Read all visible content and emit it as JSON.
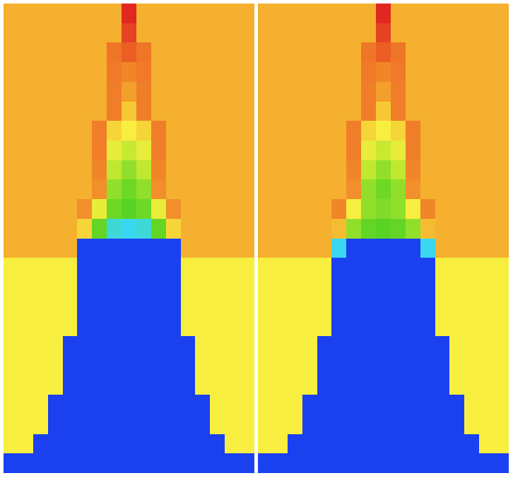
{
  "chart_data": [
    {
      "type": "heatmap",
      "tick_labels": false,
      "zlim": [
        0,
        1
      ],
      "cells": [
        [
          0.72,
          0.72,
          0.72,
          0.72,
          0.72,
          0.72,
          0.72,
          0.72,
          1,
          0.72,
          0.72,
          0.72,
          0.72,
          0.72,
          0.72,
          0.72,
          0.72
        ],
        [
          0.72,
          0.72,
          0.72,
          0.72,
          0.72,
          0.72,
          0.72,
          0.72,
          0.95,
          0.72,
          0.72,
          0.72,
          0.72,
          0.72,
          0.72,
          0.72,
          0.72
        ],
        [
          0.72,
          0.72,
          0.72,
          0.72,
          0.72,
          0.72,
          0.72,
          0.86,
          0.9,
          0.86,
          0.72,
          0.72,
          0.72,
          0.72,
          0.72,
          0.72,
          0.72
        ],
        [
          0.72,
          0.72,
          0.72,
          0.72,
          0.72,
          0.72,
          0.72,
          0.85,
          0.82,
          0.85,
          0.72,
          0.72,
          0.72,
          0.72,
          0.72,
          0.72,
          0.72
        ],
        [
          0.72,
          0.72,
          0.72,
          0.72,
          0.72,
          0.72,
          0.72,
          0.84,
          0.76,
          0.84,
          0.72,
          0.72,
          0.72,
          0.72,
          0.72,
          0.72,
          0.72
        ],
        [
          0.72,
          0.72,
          0.72,
          0.72,
          0.72,
          0.72,
          0.72,
          0.84,
          0.68,
          0.84,
          0.72,
          0.72,
          0.72,
          0.72,
          0.72,
          0.72,
          0.72
        ],
        [
          0.72,
          0.72,
          0.72,
          0.72,
          0.72,
          0.72,
          0.84,
          0.66,
          0.62,
          0.66,
          0.84,
          0.72,
          0.72,
          0.72,
          0.72,
          0.72,
          0.72
        ],
        [
          0.72,
          0.72,
          0.72,
          0.72,
          0.72,
          0.72,
          0.84,
          0.6,
          0.56,
          0.6,
          0.84,
          0.72,
          0.72,
          0.72,
          0.72,
          0.72,
          0.72
        ],
        [
          0.72,
          0.72,
          0.72,
          0.72,
          0.72,
          0.72,
          0.82,
          0.55,
          0.5,
          0.55,
          0.82,
          0.72,
          0.72,
          0.72,
          0.72,
          0.72,
          0.72
        ],
        [
          0.72,
          0.72,
          0.72,
          0.72,
          0.72,
          0.72,
          0.8,
          0.5,
          0.46,
          0.5,
          0.8,
          0.72,
          0.72,
          0.72,
          0.72,
          0.72,
          0.72
        ],
        [
          0.72,
          0.72,
          0.72,
          0.72,
          0.72,
          0.8,
          0.6,
          0.46,
          0.44,
          0.46,
          0.6,
          0.8,
          0.72,
          0.72,
          0.72,
          0.72,
          0.72
        ],
        [
          0.72,
          0.72,
          0.72,
          0.72,
          0.72,
          0.66,
          0.45,
          0.3,
          0.28,
          0.3,
          0.45,
          0.66,
          0.72,
          0.72,
          0.72,
          0.72,
          0.72
        ],
        [
          0.72,
          0.72,
          0.72,
          0.72,
          0.72,
          0,
          0,
          0,
          0,
          0,
          0,
          0,
          0.72,
          0.72,
          0.72,
          0.72,
          0.72
        ],
        [
          0.62,
          0.62,
          0.62,
          0.62,
          0.62,
          0,
          0,
          0,
          0,
          0,
          0,
          0,
          0.62,
          0.62,
          0.62,
          0.62,
          0.62
        ],
        [
          0.62,
          0.62,
          0.62,
          0.62,
          0.62,
          0,
          0,
          0,
          0,
          0,
          0,
          0,
          0.62,
          0.62,
          0.62,
          0.62,
          0.62
        ],
        [
          0.62,
          0.62,
          0.62,
          0.62,
          0.62,
          0,
          0,
          0,
          0,
          0,
          0,
          0,
          0.62,
          0.62,
          0.62,
          0.62,
          0.62
        ],
        [
          0.62,
          0.62,
          0.62,
          0.62,
          0.62,
          0,
          0,
          0,
          0,
          0,
          0,
          0,
          0.62,
          0.62,
          0.62,
          0.62,
          0.62
        ],
        [
          0.62,
          0.62,
          0.62,
          0.62,
          0,
          0,
          0,
          0,
          0,
          0,
          0,
          0,
          0,
          0.62,
          0.62,
          0.62,
          0.62
        ],
        [
          0.62,
          0.62,
          0.62,
          0.62,
          0,
          0,
          0,
          0,
          0,
          0,
          0,
          0,
          0,
          0.62,
          0.62,
          0.62,
          0.62
        ],
        [
          0.62,
          0.62,
          0.62,
          0.62,
          0,
          0,
          0,
          0,
          0,
          0,
          0,
          0,
          0,
          0.62,
          0.62,
          0.62,
          0.62
        ],
        [
          0.62,
          0.62,
          0.62,
          0,
          0,
          0,
          0,
          0,
          0,
          0,
          0,
          0,
          0,
          0,
          0.62,
          0.62,
          0.62
        ],
        [
          0.62,
          0.62,
          0.62,
          0,
          0,
          0,
          0,
          0,
          0,
          0,
          0,
          0,
          0,
          0,
          0.62,
          0.62,
          0.62
        ],
        [
          0.62,
          0.62,
          0,
          0,
          0,
          0,
          0,
          0,
          0,
          0,
          0,
          0,
          0,
          0,
          0,
          0.62,
          0.62
        ],
        [
          0,
          0,
          0,
          0,
          0,
          0,
          0,
          0,
          0,
          0,
          0,
          0,
          0,
          0,
          0,
          0,
          0
        ]
      ]
    },
    {
      "type": "heatmap",
      "tick_labels": false,
      "zlim": [
        0,
        1
      ],
      "cells": [
        [
          0.72,
          0.72,
          0.72,
          0.72,
          0.72,
          0.72,
          0.72,
          0.72,
          1,
          0.72,
          0.72,
          0.72,
          0.72,
          0.72,
          0.72,
          0.72,
          0.72
        ],
        [
          0.72,
          0.72,
          0.72,
          0.72,
          0.72,
          0.72,
          0.72,
          0.72,
          0.95,
          0.72,
          0.72,
          0.72,
          0.72,
          0.72,
          0.72,
          0.72,
          0.72
        ],
        [
          0.72,
          0.72,
          0.72,
          0.72,
          0.72,
          0.72,
          0.72,
          0.86,
          0.9,
          0.86,
          0.72,
          0.72,
          0.72,
          0.72,
          0.72,
          0.72,
          0.72
        ],
        [
          0.72,
          0.72,
          0.72,
          0.72,
          0.72,
          0.72,
          0.72,
          0.85,
          0.82,
          0.85,
          0.72,
          0.72,
          0.72,
          0.72,
          0.72,
          0.72,
          0.72
        ],
        [
          0.72,
          0.72,
          0.72,
          0.72,
          0.72,
          0.72,
          0.72,
          0.84,
          0.76,
          0.84,
          0.72,
          0.72,
          0.72,
          0.72,
          0.72,
          0.72,
          0.72
        ],
        [
          0.72,
          0.72,
          0.72,
          0.72,
          0.72,
          0.72,
          0.72,
          0.84,
          0.68,
          0.84,
          0.72,
          0.72,
          0.72,
          0.72,
          0.72,
          0.72,
          0.72
        ],
        [
          0.72,
          0.72,
          0.72,
          0.72,
          0.72,
          0.72,
          0.84,
          0.66,
          0.62,
          0.66,
          0.84,
          0.72,
          0.72,
          0.72,
          0.72,
          0.72,
          0.72
        ],
        [
          0.72,
          0.72,
          0.72,
          0.72,
          0.72,
          0.72,
          0.84,
          0.6,
          0.56,
          0.6,
          0.84,
          0.72,
          0.72,
          0.72,
          0.72,
          0.72,
          0.72
        ],
        [
          0.72,
          0.72,
          0.72,
          0.72,
          0.72,
          0.72,
          0.82,
          0.55,
          0.5,
          0.55,
          0.82,
          0.72,
          0.72,
          0.72,
          0.72,
          0.72,
          0.72
        ],
        [
          0.72,
          0.72,
          0.72,
          0.72,
          0.72,
          0.72,
          0.8,
          0.5,
          0.46,
          0.5,
          0.8,
          0.72,
          0.72,
          0.72,
          0.72,
          0.72,
          0.72
        ],
        [
          0.72,
          0.72,
          0.72,
          0.72,
          0.72,
          0.82,
          0.62,
          0.5,
          0.48,
          0.5,
          0.62,
          0.82,
          0.72,
          0.72,
          0.72,
          0.72,
          0.72
        ],
        [
          0.72,
          0.72,
          0.72,
          0.72,
          0.72,
          0.7,
          0.5,
          0.45,
          0.44,
          0.45,
          0.5,
          0.7,
          0.72,
          0.72,
          0.72,
          0.72,
          0.72
        ],
        [
          0.72,
          0.72,
          0.72,
          0.72,
          0.72,
          0.28,
          0,
          0,
          0,
          0,
          0,
          0.28,
          0.72,
          0.72,
          0.72,
          0.72,
          0.72
        ],
        [
          0.62,
          0.62,
          0.62,
          0.62,
          0.62,
          0,
          0,
          0,
          0,
          0,
          0,
          0,
          0.62,
          0.62,
          0.62,
          0.62,
          0.62
        ],
        [
          0.62,
          0.62,
          0.62,
          0.62,
          0.62,
          0,
          0,
          0,
          0,
          0,
          0,
          0,
          0.62,
          0.62,
          0.62,
          0.62,
          0.62
        ],
        [
          0.62,
          0.62,
          0.62,
          0.62,
          0.62,
          0,
          0,
          0,
          0,
          0,
          0,
          0,
          0.62,
          0.62,
          0.62,
          0.62,
          0.62
        ],
        [
          0.62,
          0.62,
          0.62,
          0.62,
          0.62,
          0,
          0,
          0,
          0,
          0,
          0,
          0,
          0.62,
          0.62,
          0.62,
          0.62,
          0.62
        ],
        [
          0.62,
          0.62,
          0.62,
          0.62,
          0,
          0,
          0,
          0,
          0,
          0,
          0,
          0,
          0,
          0.62,
          0.62,
          0.62,
          0.62
        ],
        [
          0.62,
          0.62,
          0.62,
          0.62,
          0,
          0,
          0,
          0,
          0,
          0,
          0,
          0,
          0,
          0.62,
          0.62,
          0.62,
          0.62
        ],
        [
          0.62,
          0.62,
          0.62,
          0.62,
          0,
          0,
          0,
          0,
          0,
          0,
          0,
          0,
          0,
          0.62,
          0.62,
          0.62,
          0.62
        ],
        [
          0.62,
          0.62,
          0.62,
          0,
          0,
          0,
          0,
          0,
          0,
          0,
          0,
          0,
          0,
          0,
          0.62,
          0.62,
          0.62
        ],
        [
          0.62,
          0.62,
          0.62,
          0,
          0,
          0,
          0,
          0,
          0,
          0,
          0,
          0,
          0,
          0,
          0.62,
          0.62,
          0.62
        ],
        [
          0.62,
          0.62,
          0,
          0,
          0,
          0,
          0,
          0,
          0,
          0,
          0,
          0,
          0,
          0,
          0,
          0.62,
          0.62
        ],
        [
          0,
          0,
          0,
          0,
          0,
          0,
          0,
          0,
          0,
          0,
          0,
          0,
          0,
          0,
          0,
          0,
          0
        ]
      ]
    }
  ]
}
